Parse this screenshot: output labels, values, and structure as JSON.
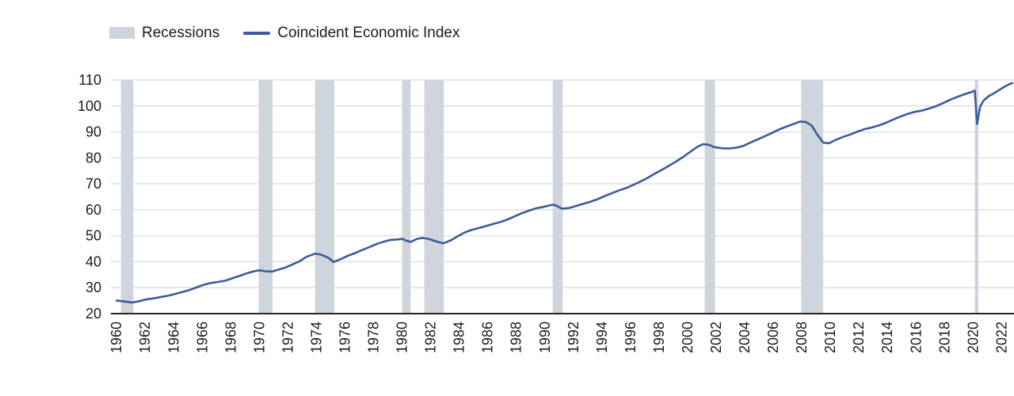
{
  "chart_data": {
    "type": "line",
    "title": "",
    "xlabel": "",
    "ylabel": "",
    "xlim": [
      1959.6,
      2023.2
    ],
    "ylim": [
      20,
      110
    ],
    "grid": true,
    "legend_position": "top-left",
    "x_ticks": [
      1960,
      1962,
      1964,
      1966,
      1968,
      1970,
      1972,
      1974,
      1976,
      1978,
      1980,
      1982,
      1984,
      1986,
      1988,
      1990,
      1992,
      1994,
      1996,
      1998,
      2000,
      2002,
      2004,
      2006,
      2008,
      2010,
      2012,
      2014,
      2016,
      2018,
      2020,
      2022
    ],
    "y_ticks": [
      20,
      30,
      40,
      50,
      60,
      70,
      80,
      90,
      100,
      110
    ],
    "colors": {
      "band": "#cfd5dc",
      "line": "#3b5b9b",
      "grid": "#d9d9d9",
      "axis": "#262626",
      "text": "#1a1a1a"
    },
    "legend": [
      {
        "label": "Recessions",
        "type": "band",
        "color": "#cfd5dc"
      },
      {
        "label": "Coincident Economic Index",
        "type": "line",
        "color": "#3b5b9b"
      }
    ],
    "recessions": [
      [
        1960.3,
        1961.17
      ],
      [
        1969.95,
        1970.92
      ],
      [
        1973.9,
        1975.25
      ],
      [
        1980.0,
        1980.6
      ],
      [
        1981.55,
        1982.92
      ],
      [
        1990.55,
        1991.25
      ],
      [
        2001.2,
        2001.92
      ],
      [
        2007.95,
        2009.5
      ],
      [
        2020.12,
        2020.37
      ]
    ],
    "series": [
      {
        "name": "Coincident Economic Index",
        "color": "#3b5b9b",
        "x": [
          1960.0,
          1960.4,
          1961.1,
          1961.6,
          1962.1,
          1962.6,
          1963.1,
          1963.6,
          1964.1,
          1964.6,
          1965.1,
          1965.6,
          1966.1,
          1966.6,
          1967.1,
          1967.6,
          1968.1,
          1968.6,
          1969.1,
          1969.6,
          1970.0,
          1970.5,
          1970.9,
          1971.3,
          1971.8,
          1972.3,
          1972.8,
          1973.3,
          1973.9,
          1974.3,
          1974.8,
          1975.2,
          1975.7,
          1976.2,
          1976.7,
          1977.2,
          1977.7,
          1978.2,
          1978.7,
          1979.2,
          1979.7,
          1980.0,
          1980.3,
          1980.6,
          1981.0,
          1981.4,
          1981.9,
          1982.4,
          1982.9,
          1983.4,
          1983.9,
          1984.4,
          1984.9,
          1985.4,
          1985.9,
          1986.4,
          1986.9,
          1987.4,
          1987.9,
          1988.4,
          1988.9,
          1989.4,
          1989.9,
          1990.4,
          1990.7,
          1991.2,
          1991.7,
          1992.2,
          1992.7,
          1993.2,
          1993.7,
          1994.2,
          1994.7,
          1995.2,
          1995.7,
          1996.2,
          1996.7,
          1997.2,
          1997.7,
          1998.2,
          1998.7,
          1999.2,
          1999.7,
          2000.2,
          2000.7,
          2001.1,
          2001.5,
          2001.9,
          2002.4,
          2002.9,
          2003.4,
          2003.9,
          2004.4,
          2004.9,
          2005.4,
          2005.9,
          2006.4,
          2006.9,
          2007.4,
          2007.9,
          2008.3,
          2008.7,
          2009.1,
          2009.5,
          2009.9,
          2010.4,
          2010.9,
          2011.4,
          2011.9,
          2012.4,
          2012.9,
          2013.4,
          2013.9,
          2014.4,
          2014.9,
          2015.4,
          2015.9,
          2016.4,
          2016.9,
          2017.4,
          2017.9,
          2018.4,
          2018.9,
          2019.4,
          2019.9,
          2020.12,
          2020.28,
          2020.5,
          2020.75,
          2021.1,
          2021.5,
          2021.9,
          2022.2,
          2022.5,
          2022.75
        ],
        "y": [
          25.0,
          24.8,
          24.3,
          24.8,
          25.5,
          25.9,
          26.4,
          26.9,
          27.6,
          28.3,
          29.1,
          30.1,
          31.1,
          31.8,
          32.2,
          32.7,
          33.6,
          34.5,
          35.5,
          36.3,
          36.7,
          36.3,
          36.2,
          36.9,
          37.7,
          38.9,
          40.1,
          41.9,
          43.1,
          42.8,
          41.6,
          39.9,
          41.0,
          42.3,
          43.3,
          44.5,
          45.6,
          46.8,
          47.7,
          48.4,
          48.6,
          48.8,
          48.1,
          47.6,
          48.7,
          49.2,
          48.7,
          47.8,
          47.1,
          48.2,
          49.8,
          51.3,
          52.3,
          53.0,
          53.8,
          54.6,
          55.3,
          56.3,
          57.5,
          58.7,
          59.7,
          60.6,
          61.1,
          61.8,
          61.9,
          60.4,
          60.7,
          61.5,
          62.3,
          63.1,
          64.1,
          65.3,
          66.4,
          67.5,
          68.4,
          69.6,
          70.9,
          72.3,
          73.9,
          75.4,
          77.0,
          78.6,
          80.4,
          82.4,
          84.3,
          85.3,
          85.0,
          84.1,
          83.7,
          83.6,
          83.9,
          84.6,
          85.9,
          87.1,
          88.3,
          89.6,
          90.9,
          92.0,
          93.0,
          94.0,
          93.8,
          92.4,
          88.9,
          85.9,
          85.6,
          87.0,
          88.1,
          89.0,
          90.1,
          91.1,
          91.7,
          92.5,
          93.5,
          94.7,
          95.9,
          96.9,
          97.7,
          98.2,
          99.0,
          99.9,
          101.1,
          102.4,
          103.5,
          104.5,
          105.4,
          105.9,
          93.0,
          99.8,
          102.2,
          103.8,
          105.0,
          106.4,
          107.4,
          108.3,
          108.8
        ]
      }
    ]
  }
}
